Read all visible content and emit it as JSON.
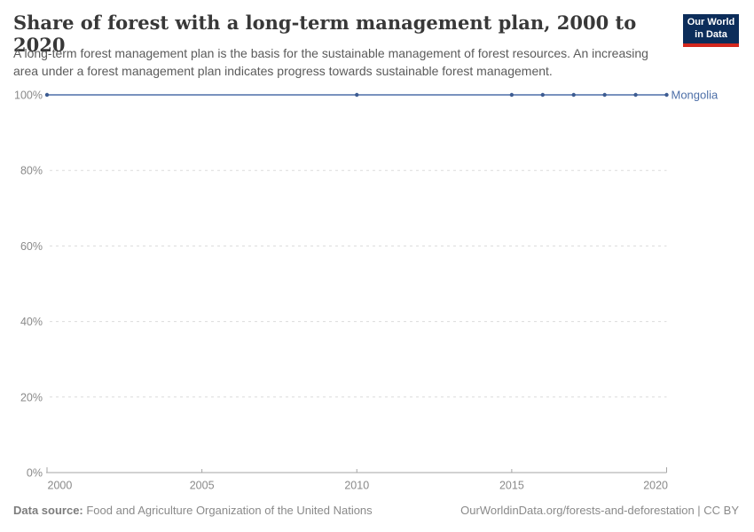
{
  "header": {
    "title": "Share of forest with a long-term management plan, 2000 to 2020",
    "subtitle": "A long-term forest management plan is the basis for the sustainable management of forest resources. An increasing area under a forest management plan indicates progress towards sustainable forest management.",
    "logo": {
      "line1": "Our World",
      "line2": "in Data"
    }
  },
  "chart_data": {
    "type": "line",
    "title": "Share of forest with a long-term management plan, 2000 to 2020",
    "xlabel": "",
    "ylabel": "",
    "x": {
      "min": 2000,
      "max": 2020,
      "ticks": [
        2000,
        2005,
        2010,
        2015,
        2020
      ]
    },
    "y": {
      "min": 0,
      "max": 100,
      "ticks": [
        0,
        20,
        40,
        60,
        80,
        100
      ],
      "tick_suffix": "%"
    },
    "grid": "horizontal-dashed",
    "legend_position": "end-of-line-label",
    "series": [
      {
        "name": "Mongolia",
        "points": [
          {
            "x": 2000,
            "y": 100
          },
          {
            "x": 2010,
            "y": 100
          },
          {
            "x": 2015,
            "y": 100
          },
          {
            "x": 2016,
            "y": 100
          },
          {
            "x": 2017,
            "y": 100
          },
          {
            "x": 2018,
            "y": 100
          },
          {
            "x": 2019,
            "y": 100
          },
          {
            "x": 2020,
            "y": 100
          }
        ]
      }
    ]
  },
  "colors": {
    "series_line": "#4d6fa8",
    "series_marker": "#3d5c92",
    "series_label": "#4d6fa8",
    "grid": "#dcdcdc",
    "axis_line": "#a5a5a5",
    "axis_text": "#8a8a8a",
    "title_text": "#383838",
    "subtitle_text": "#5b5b5b",
    "logo_bg": "#0c2d5a",
    "logo_red": "#d3271d"
  },
  "footer": {
    "datasource_label": "Data source:",
    "datasource_value": " Food and Agriculture Organization of the United Nations",
    "attribution": "OurWorldinData.org/forests-and-deforestation | CC BY"
  }
}
